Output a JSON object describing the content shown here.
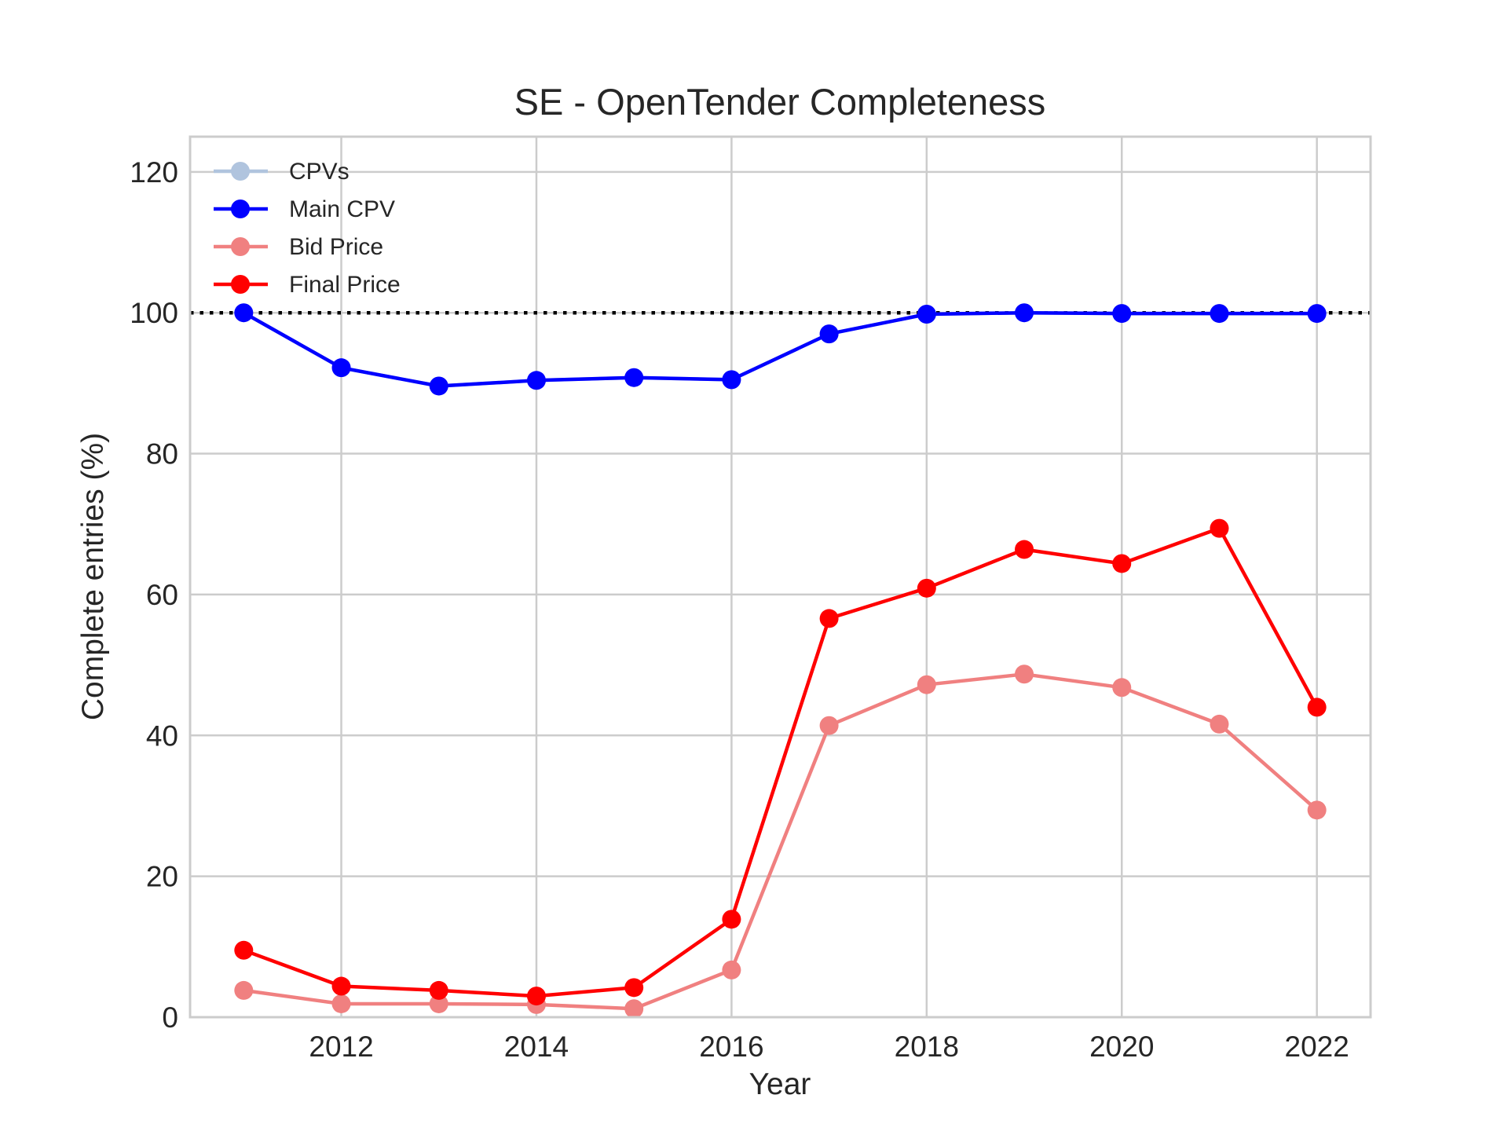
{
  "chart_data": {
    "type": "line",
    "title": "SE - OpenTender Completeness",
    "xlabel": "Year",
    "ylabel": "Complete entries (%)",
    "x": [
      2011,
      2012,
      2013,
      2014,
      2015,
      2016,
      2017,
      2018,
      2019,
      2020,
      2021,
      2022
    ],
    "xticks": [
      2012,
      2014,
      2016,
      2018,
      2020,
      2022
    ],
    "yticks": [
      0,
      20,
      40,
      60,
      80,
      100,
      120
    ],
    "xlim": [
      2010.45,
      2022.55
    ],
    "ylim": [
      0,
      125
    ],
    "grid": true,
    "reference_line": {
      "y": 100,
      "style": "dotted",
      "color": "#000000"
    },
    "legend_position": "top-left",
    "series": [
      {
        "name": "CPVs",
        "color": "#b0c4de",
        "values": [
          100,
          92.2,
          89.6,
          90.4,
          90.8,
          90.5,
          97.0,
          99.8,
          100,
          99.9,
          99.9,
          99.9
        ]
      },
      {
        "name": "Main CPV",
        "color": "#0000ff",
        "values": [
          100,
          92.2,
          89.6,
          90.4,
          90.8,
          90.5,
          97.0,
          99.8,
          100,
          99.9,
          99.9,
          99.9
        ]
      },
      {
        "name": "Bid Price",
        "color": "#f08080",
        "values": [
          3.8,
          1.9,
          1.9,
          1.8,
          1.2,
          6.7,
          41.4,
          47.2,
          48.7,
          46.8,
          41.6,
          29.4
        ]
      },
      {
        "name": "Final Price",
        "color": "#ff0000",
        "values": [
          9.5,
          4.4,
          3.8,
          3.0,
          4.2,
          13.9,
          56.6,
          60.9,
          66.4,
          64.4,
          69.4,
          44.0
        ]
      }
    ]
  }
}
